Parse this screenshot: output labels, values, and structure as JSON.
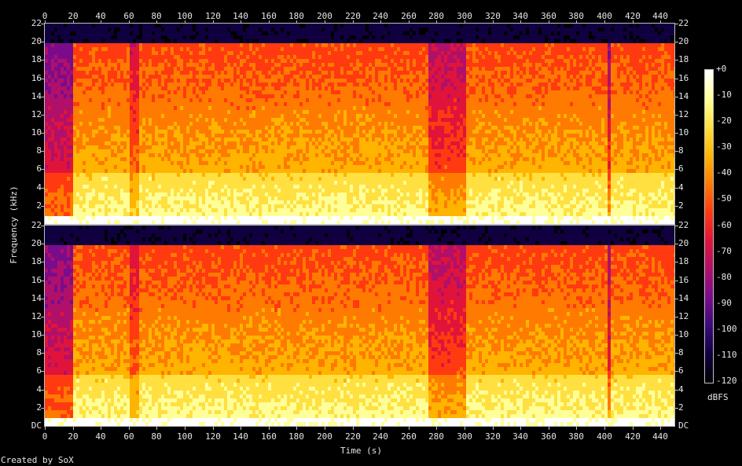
{
  "chart_data": {
    "type": "heatmap",
    "title": "",
    "xlabel": "Time (s)",
    "ylabel": "Frequency (kHz)",
    "xlim": [
      0,
      450
    ],
    "ylim": [
      0,
      22
    ],
    "x_ticks": [
      "0",
      "20",
      "40",
      "60",
      "80",
      "100",
      "120",
      "140",
      "160",
      "180",
      "200",
      "220",
      "240",
      "260",
      "280",
      "300",
      "320",
      "340",
      "360",
      "380",
      "400",
      "420",
      "440"
    ],
    "y_ticks": [
      "2",
      "4",
      "6",
      "8",
      "10",
      "12",
      "14",
      "16",
      "18",
      "20",
      "22"
    ],
    "y_tick_values": [
      2,
      4,
      6,
      8,
      10,
      12,
      14,
      16,
      18,
      20,
      22
    ],
    "bottom_zero_label": "DC",
    "channels": [
      "channel-1",
      "channel-2"
    ],
    "colorbar": {
      "label": "dBFS",
      "ticks": [
        "+0",
        "-10",
        "-20",
        "-30",
        "-40",
        "-50",
        "-60",
        "-70",
        "-80",
        "-90",
        "-100",
        "-110",
        "-120"
      ],
      "range": [
        -120,
        0
      ],
      "colors": [
        "#000000",
        "#100040",
        "#3a0b7a",
        "#7a0c8c",
        "#b0106a",
        "#e0143a",
        "#ff3a10",
        "#ff7a00",
        "#ffb400",
        "#ffe040",
        "#ffff9a",
        "#ffffff"
      ]
    },
    "regions": [
      {
        "t_start": 0,
        "t_end": 20,
        "level": "quiet intro, mostly purple above 6 kHz"
      },
      {
        "t_start": 20,
        "t_end": 300,
        "level": "loud, red to 20 kHz, yellow below 6 kHz"
      },
      {
        "t_start": 300,
        "t_end": 450,
        "level": "loud, red to 20 kHz, yellow below 6 kHz"
      }
    ],
    "cutoff_khz": 20
  },
  "footer": {
    "credit": "Created by SoX"
  }
}
